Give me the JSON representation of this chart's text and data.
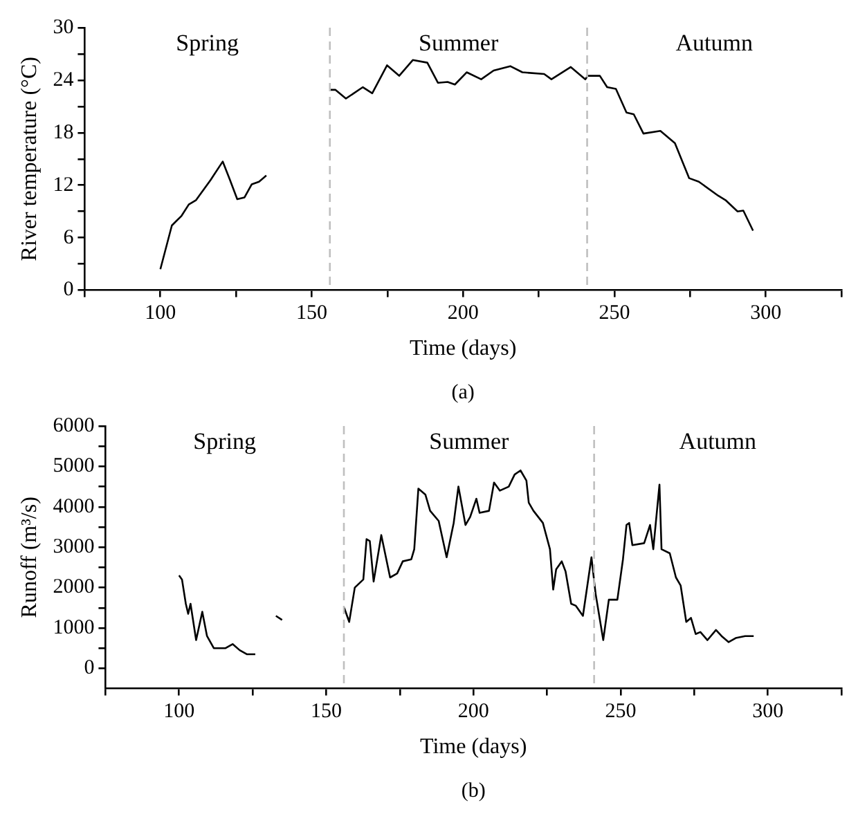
{
  "chart_data": [
    {
      "type": "line",
      "xlabel": "Time (days)",
      "ylabel": "River temperature (°C)",
      "series": [
        {
          "color": "#000000",
          "x": [
            100,
            103.8,
            107,
            109.4,
            111.8,
            116.6,
            120.6,
            123,
            125.4,
            127.8,
            130.2,
            132.6,
            135,
            145,
            156.1,
            157.8,
            161.3,
            166.9,
            170,
            174.9,
            178.9,
            183.4,
            188.2,
            191.7,
            194.9,
            197.3,
            201.2,
            206,
            210.1,
            215.6,
            219.6,
            226.8,
            229.2,
            235.6,
            240.4,
            241.2,
            245.2,
            247.6,
            250.5,
            254,
            256.4,
            259.6,
            265.2,
            270,
            274.7,
            277.9,
            284.3,
            286.7,
            290.7,
            292.6,
            295.8
          ],
          "values": [
            2.4,
            7.4,
            8.5,
            9.8,
            10.3,
            12.6,
            14.7,
            12.6,
            10.4,
            10.6,
            12.1,
            12.4,
            13.1,
            null,
            22.9,
            22.9,
            21.9,
            23.2,
            22.5,
            25.7,
            24.5,
            26.3,
            26,
            23.7,
            23.8,
            23.5,
            24.9,
            24.1,
            25.1,
            25.6,
            24.9,
            24.7,
            24.1,
            25.5,
            24.1,
            24.5,
            24.5,
            23.2,
            23,
            20.3,
            20.1,
            17.9,
            18.2,
            16.8,
            12.8,
            12.4,
            10.8,
            10.3,
            9,
            9.1,
            6.8
          ]
        }
      ],
      "xlim": [
        75,
        325
      ],
      "xticks": [
        {
          "value": 75,
          "label": null
        },
        100,
        {
          "value": 125,
          "label": null
        },
        150,
        {
          "value": 175,
          "label": null
        },
        200,
        {
          "value": 225,
          "label": null
        },
        250,
        {
          "value": 275,
          "label": null
        },
        300,
        {
          "value": 325,
          "label": null
        }
      ],
      "ylim": [
        0,
        30
      ],
      "yticks": [
        0,
        {
          "value": 3,
          "label": null
        },
        6,
        {
          "value": 9,
          "label": null
        },
        12,
        {
          "value": 15,
          "label": null
        },
        18,
        {
          "value": 21,
          "label": null
        },
        24,
        {
          "value": 27,
          "label": null
        },
        30
      ],
      "ref_lines": [
        {
          "axis": "x",
          "value": 156,
          "color": "#bfbfbf",
          "line_style": "dashed"
        },
        {
          "axis": "x",
          "value": 241,
          "color": "#bfbfbf",
          "line_style": "dashed"
        }
      ],
      "annotations": [
        "Spring",
        "Summer",
        "Autumn",
        "(a)"
      ]
    },
    {
      "type": "line",
      "xlabel": "Time (days)",
      "ylabel": "Runoff (m³/s)",
      "series": [
        {
          "color": "#000000",
          "x": [
            100,
            101,
            102.3,
            103.1,
            103.9,
            105.8,
            107.9,
            109.5,
            111.8,
            115.8,
            118.2,
            120.6,
            123,
            125.9,
            129,
            132.9,
            135,
            145,
            156.1,
            157.8,
            159.7,
            162.6,
            163.7,
            164.8,
            166.1,
            168.7,
            171.7,
            174.1,
            176,
            178.9,
            179.9,
            181.3,
            183.7,
            185.3,
            188.2,
            190.9,
            193.3,
            194.9,
            197.3,
            198.9,
            201,
            202.1,
            205.3,
            207,
            209,
            212,
            214,
            216,
            218,
            218.8,
            220.4,
            223.6,
            226,
            227.1,
            228.1,
            230,
            231.3,
            233.2,
            234.8,
            237.2,
            240.1,
            241.5,
            244.1,
            246,
            248.9,
            250.8,
            252,
            252.9,
            254,
            258,
            260,
            261.1,
            263.2,
            263.9,
            266.7,
            268.8,
            270.4,
            272.3,
            273.9,
            275.5,
            277.1,
            279.5,
            282.4,
            284.3,
            286.7,
            289.1,
            292.3,
            295.2
          ],
          "values": [
            2300,
            2200,
            1600,
            1350,
            1600,
            700,
            1400,
            800,
            500,
            500,
            600,
            450,
            350,
            350,
            null,
            1300,
            1200,
            null,
            1500,
            1150,
            2000,
            2200,
            3200,
            3150,
            2150,
            3300,
            2250,
            2350,
            2650,
            2700,
            2950,
            4450,
            4300,
            3900,
            3650,
            2750,
            3600,
            4500,
            3550,
            3750,
            4200,
            3850,
            3900,
            4600,
            4400,
            4500,
            4800,
            4900,
            4650,
            4100,
            3900,
            3600,
            2950,
            1950,
            2450,
            2650,
            2400,
            1600,
            1550,
            1300,
            2750,
            1850,
            700,
            1700,
            1700,
            2700,
            3550,
            3600,
            3050,
            3100,
            3550,
            2950,
            4550,
            2950,
            2850,
            2250,
            2050,
            1150,
            1250,
            850,
            900,
            700,
            950,
            800,
            650,
            750,
            800,
            800
          ]
        }
      ],
      "xlim": [
        75,
        325
      ],
      "xticks": [
        {
          "value": 75,
          "label": null
        },
        100,
        {
          "value": 125,
          "label": null
        },
        150,
        {
          "value": 175,
          "label": null
        },
        200,
        {
          "value": 225,
          "label": null
        },
        250,
        {
          "value": 275,
          "label": null
        },
        300,
        {
          "value": 325,
          "label": null
        }
      ],
      "ylim": [
        -500,
        6000
      ],
      "yticks": [
        0,
        {
          "value": 500,
          "label": null
        },
        1000,
        {
          "value": 1500,
          "label": null
        },
        2000,
        {
          "value": 2500,
          "label": null
        },
        3000,
        {
          "value": 3500,
          "label": null
        },
        4000,
        {
          "value": 4500,
          "label": null
        },
        5000,
        {
          "value": 5500,
          "label": null
        },
        6000
      ],
      "ref_lines": [
        {
          "axis": "x",
          "value": 156,
          "color": "#bfbfbf",
          "line_style": "dashed"
        },
        {
          "axis": "x",
          "value": 241,
          "color": "#bfbfbf",
          "line_style": "dashed"
        }
      ],
      "annotations": [
        "Spring",
        "Summer",
        "Autumn",
        "(b)"
      ]
    }
  ]
}
